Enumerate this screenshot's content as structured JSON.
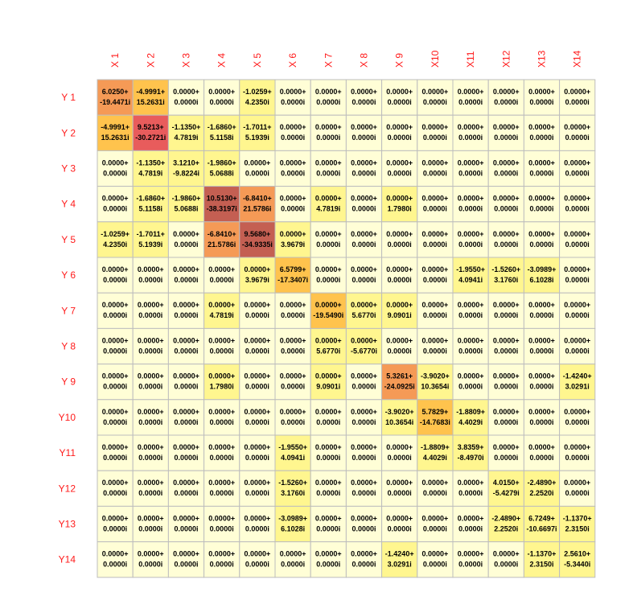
{
  "chart_data": {
    "type": "heatmap",
    "title": "",
    "columns": [
      "X 1",
      "X 2",
      "X 3",
      "X 4",
      "X 5",
      "X 6",
      "X 7",
      "X 8",
      "X 9",
      "X10",
      "X11",
      "X12",
      "X13",
      "X14"
    ],
    "rows": [
      "Y 1",
      "Y 2",
      "Y 3",
      "Y 4",
      "Y 5",
      "Y 6",
      "Y 7",
      "Y 8",
      "Y 9",
      "Y10",
      "Y11",
      "Y12",
      "Y13",
      "Y14"
    ],
    "cells": [
      [
        [
          "6.0250+",
          "-19.4471i"
        ],
        [
          "-4.9991+",
          "15.2631i"
        ],
        [
          "0.0000+",
          "0.0000i"
        ],
        [
          "0.0000+",
          "0.0000i"
        ],
        [
          "-1.0259+",
          "4.2350i"
        ],
        [
          "0.0000+",
          "0.0000i"
        ],
        [
          "0.0000+",
          "0.0000i"
        ],
        [
          "0.0000+",
          "0.0000i"
        ],
        [
          "0.0000+",
          "0.0000i"
        ],
        [
          "0.0000+",
          "0.0000i"
        ],
        [
          "0.0000+",
          "0.0000i"
        ],
        [
          "0.0000+",
          "0.0000i"
        ],
        [
          "0.0000+",
          "0.0000i"
        ],
        [
          "0.0000+",
          "0.0000i"
        ]
      ],
      [
        [
          "-4.9991+",
          "15.2631i"
        ],
        [
          "9.5213+",
          "-30.2721i"
        ],
        [
          "-1.1350+",
          "4.7819i"
        ],
        [
          "-1.6860+",
          "5.1158i"
        ],
        [
          "-1.7011+",
          "5.1939i"
        ],
        [
          "0.0000+",
          "0.0000i"
        ],
        [
          "0.0000+",
          "0.0000i"
        ],
        [
          "0.0000+",
          "0.0000i"
        ],
        [
          "0.0000+",
          "0.0000i"
        ],
        [
          "0.0000+",
          "0.0000i"
        ],
        [
          "0.0000+",
          "0.0000i"
        ],
        [
          "0.0000+",
          "0.0000i"
        ],
        [
          "0.0000+",
          "0.0000i"
        ],
        [
          "0.0000+",
          "0.0000i"
        ]
      ],
      [
        [
          "0.0000+",
          "0.0000i"
        ],
        [
          "-1.1350+",
          "4.7819i"
        ],
        [
          "3.1210+",
          "-9.8224i"
        ],
        [
          "-1.9860+",
          "5.0688i"
        ],
        [
          "0.0000+",
          "0.0000i"
        ],
        [
          "0.0000+",
          "0.0000i"
        ],
        [
          "0.0000+",
          "0.0000i"
        ],
        [
          "0.0000+",
          "0.0000i"
        ],
        [
          "0.0000+",
          "0.0000i"
        ],
        [
          "0.0000+",
          "0.0000i"
        ],
        [
          "0.0000+",
          "0.0000i"
        ],
        [
          "0.0000+",
          "0.0000i"
        ],
        [
          "0.0000+",
          "0.0000i"
        ],
        [
          "0.0000+",
          "0.0000i"
        ]
      ],
      [
        [
          "0.0000+",
          "0.0000i"
        ],
        [
          "-1.6860+",
          "5.1158i"
        ],
        [
          "-1.9860+",
          "5.0688i"
        ],
        [
          "10.5130+",
          "-38.3197i"
        ],
        [
          "-6.8410+",
          "21.5786i"
        ],
        [
          "0.0000+",
          "0.0000i"
        ],
        [
          "0.0000+",
          "4.7819i"
        ],
        [
          "0.0000+",
          "0.0000i"
        ],
        [
          "0.0000+",
          "1.7980i"
        ],
        [
          "0.0000+",
          "0.0000i"
        ],
        [
          "0.0000+",
          "0.0000i"
        ],
        [
          "0.0000+",
          "0.0000i"
        ],
        [
          "0.0000+",
          "0.0000i"
        ],
        [
          "0.0000+",
          "0.0000i"
        ]
      ],
      [
        [
          "-1.0259+",
          "4.2350i"
        ],
        [
          "-1.7011+",
          "5.1939i"
        ],
        [
          "0.0000+",
          "0.0000i"
        ],
        [
          "-6.8410+",
          "21.5786i"
        ],
        [
          "9.5680+",
          "-34.9335i"
        ],
        [
          "0.0000+",
          "3.9679i"
        ],
        [
          "0.0000+",
          "0.0000i"
        ],
        [
          "0.0000+",
          "0.0000i"
        ],
        [
          "0.0000+",
          "0.0000i"
        ],
        [
          "0.0000+",
          "0.0000i"
        ],
        [
          "0.0000+",
          "0.0000i"
        ],
        [
          "0.0000+",
          "0.0000i"
        ],
        [
          "0.0000+",
          "0.0000i"
        ],
        [
          "0.0000+",
          "0.0000i"
        ]
      ],
      [
        [
          "0.0000+",
          "0.0000i"
        ],
        [
          "0.0000+",
          "0.0000i"
        ],
        [
          "0.0000+",
          "0.0000i"
        ],
        [
          "0.0000+",
          "0.0000i"
        ],
        [
          "0.0000+",
          "3.9679i"
        ],
        [
          "6.5799+",
          "-17.3407i"
        ],
        [
          "0.0000+",
          "0.0000i"
        ],
        [
          "0.0000+",
          "0.0000i"
        ],
        [
          "0.0000+",
          "0.0000i"
        ],
        [
          "0.0000+",
          "0.0000i"
        ],
        [
          "-1.9550+",
          "4.0941i"
        ],
        [
          "-1.5260+",
          "3.1760i"
        ],
        [
          "-3.0989+",
          "6.1028i"
        ],
        [
          "0.0000+",
          "0.0000i"
        ]
      ],
      [
        [
          "0.0000+",
          "0.0000i"
        ],
        [
          "0.0000+",
          "0.0000i"
        ],
        [
          "0.0000+",
          "0.0000i"
        ],
        [
          "0.0000+",
          "4.7819i"
        ],
        [
          "0.0000+",
          "0.0000i"
        ],
        [
          "0.0000+",
          "0.0000i"
        ],
        [
          "0.0000+",
          "-19.5490i"
        ],
        [
          "0.0000+",
          "5.6770i"
        ],
        [
          "0.0000+",
          "9.0901i"
        ],
        [
          "0.0000+",
          "0.0000i"
        ],
        [
          "0.0000+",
          "0.0000i"
        ],
        [
          "0.0000+",
          "0.0000i"
        ],
        [
          "0.0000+",
          "0.0000i"
        ],
        [
          "0.0000+",
          "0.0000i"
        ]
      ],
      [
        [
          "0.0000+",
          "0.0000i"
        ],
        [
          "0.0000+",
          "0.0000i"
        ],
        [
          "0.0000+",
          "0.0000i"
        ],
        [
          "0.0000+",
          "0.0000i"
        ],
        [
          "0.0000+",
          "0.0000i"
        ],
        [
          "0.0000+",
          "0.0000i"
        ],
        [
          "0.0000+",
          "5.6770i"
        ],
        [
          "0.0000+",
          "-5.6770i"
        ],
        [
          "0.0000+",
          "0.0000i"
        ],
        [
          "0.0000+",
          "0.0000i"
        ],
        [
          "0.0000+",
          "0.0000i"
        ],
        [
          "0.0000+",
          "0.0000i"
        ],
        [
          "0.0000+",
          "0.0000i"
        ],
        [
          "0.0000+",
          "0.0000i"
        ]
      ],
      [
        [
          "0.0000+",
          "0.0000i"
        ],
        [
          "0.0000+",
          "0.0000i"
        ],
        [
          "0.0000+",
          "0.0000i"
        ],
        [
          "0.0000+",
          "1.7980i"
        ],
        [
          "0.0000+",
          "0.0000i"
        ],
        [
          "0.0000+",
          "0.0000i"
        ],
        [
          "0.0000+",
          "9.0901i"
        ],
        [
          "0.0000+",
          "0.0000i"
        ],
        [
          "5.3261+",
          "-24.0925i"
        ],
        [
          "-3.9020+",
          "10.3654i"
        ],
        [
          "0.0000+",
          "0.0000i"
        ],
        [
          "0.0000+",
          "0.0000i"
        ],
        [
          "0.0000+",
          "0.0000i"
        ],
        [
          "-1.4240+",
          "3.0291i"
        ]
      ],
      [
        [
          "0.0000+",
          "0.0000i"
        ],
        [
          "0.0000+",
          "0.0000i"
        ],
        [
          "0.0000+",
          "0.0000i"
        ],
        [
          "0.0000+",
          "0.0000i"
        ],
        [
          "0.0000+",
          "0.0000i"
        ],
        [
          "0.0000+",
          "0.0000i"
        ],
        [
          "0.0000+",
          "0.0000i"
        ],
        [
          "0.0000+",
          "0.0000i"
        ],
        [
          "-3.9020+",
          "10.3654i"
        ],
        [
          "5.7829+",
          "-14.7683i"
        ],
        [
          "-1.8809+",
          "4.4029i"
        ],
        [
          "0.0000+",
          "0.0000i"
        ],
        [
          "0.0000+",
          "0.0000i"
        ],
        [
          "0.0000+",
          "0.0000i"
        ]
      ],
      [
        [
          "0.0000+",
          "0.0000i"
        ],
        [
          "0.0000+",
          "0.0000i"
        ],
        [
          "0.0000+",
          "0.0000i"
        ],
        [
          "0.0000+",
          "0.0000i"
        ],
        [
          "0.0000+",
          "0.0000i"
        ],
        [
          "-1.9550+",
          "4.0941i"
        ],
        [
          "0.0000+",
          "0.0000i"
        ],
        [
          "0.0000+",
          "0.0000i"
        ],
        [
          "0.0000+",
          "0.0000i"
        ],
        [
          "-1.8809+",
          "4.4029i"
        ],
        [
          "3.8359+",
          "-8.4970i"
        ],
        [
          "0.0000+",
          "0.0000i"
        ],
        [
          "0.0000+",
          "0.0000i"
        ],
        [
          "0.0000+",
          "0.0000i"
        ]
      ],
      [
        [
          "0.0000+",
          "0.0000i"
        ],
        [
          "0.0000+",
          "0.0000i"
        ],
        [
          "0.0000+",
          "0.0000i"
        ],
        [
          "0.0000+",
          "0.0000i"
        ],
        [
          "0.0000+",
          "0.0000i"
        ],
        [
          "-1.5260+",
          "3.1760i"
        ],
        [
          "0.0000+",
          "0.0000i"
        ],
        [
          "0.0000+",
          "0.0000i"
        ],
        [
          "0.0000+",
          "0.0000i"
        ],
        [
          "0.0000+",
          "0.0000i"
        ],
        [
          "0.0000+",
          "0.0000i"
        ],
        [
          "4.0150+",
          "-5.4279i"
        ],
        [
          "-2.4890+",
          "2.2520i"
        ],
        [
          "0.0000+",
          "0.0000i"
        ]
      ],
      [
        [
          "0.0000+",
          "0.0000i"
        ],
        [
          "0.0000+",
          "0.0000i"
        ],
        [
          "0.0000+",
          "0.0000i"
        ],
        [
          "0.0000+",
          "0.0000i"
        ],
        [
          "0.0000+",
          "0.0000i"
        ],
        [
          "-3.0989+",
          "6.1028i"
        ],
        [
          "0.0000+",
          "0.0000i"
        ],
        [
          "0.0000+",
          "0.0000i"
        ],
        [
          "0.0000+",
          "0.0000i"
        ],
        [
          "0.0000+",
          "0.0000i"
        ],
        [
          "0.0000+",
          "0.0000i"
        ],
        [
          "-2.4890+",
          "2.2520i"
        ],
        [
          "6.7249+",
          "-10.6697i"
        ],
        [
          "-1.1370+",
          "2.3150i"
        ]
      ],
      [
        [
          "0.0000+",
          "0.0000i"
        ],
        [
          "0.0000+",
          "0.0000i"
        ],
        [
          "0.0000+",
          "0.0000i"
        ],
        [
          "0.0000+",
          "0.0000i"
        ],
        [
          "0.0000+",
          "0.0000i"
        ],
        [
          "0.0000+",
          "0.0000i"
        ],
        [
          "0.0000+",
          "0.0000i"
        ],
        [
          "0.0000+",
          "0.0000i"
        ],
        [
          "-1.4240+",
          "3.0291i"
        ],
        [
          "0.0000+",
          "0.0000i"
        ],
        [
          "0.0000+",
          "0.0000i"
        ],
        [
          "0.0000+",
          "0.0000i"
        ],
        [
          "-1.1370+",
          "2.3150i"
        ],
        [
          "2.5610+",
          "-5.3440i"
        ]
      ]
    ],
    "colors": {
      "label": "#ff1a1a",
      "grid": "#bdbdbd",
      "scale": [
        "#fffed6",
        "#fff68f",
        "#ffc34d",
        "#f59a56",
        "#e85c5c",
        "#c45f52"
      ]
    }
  }
}
